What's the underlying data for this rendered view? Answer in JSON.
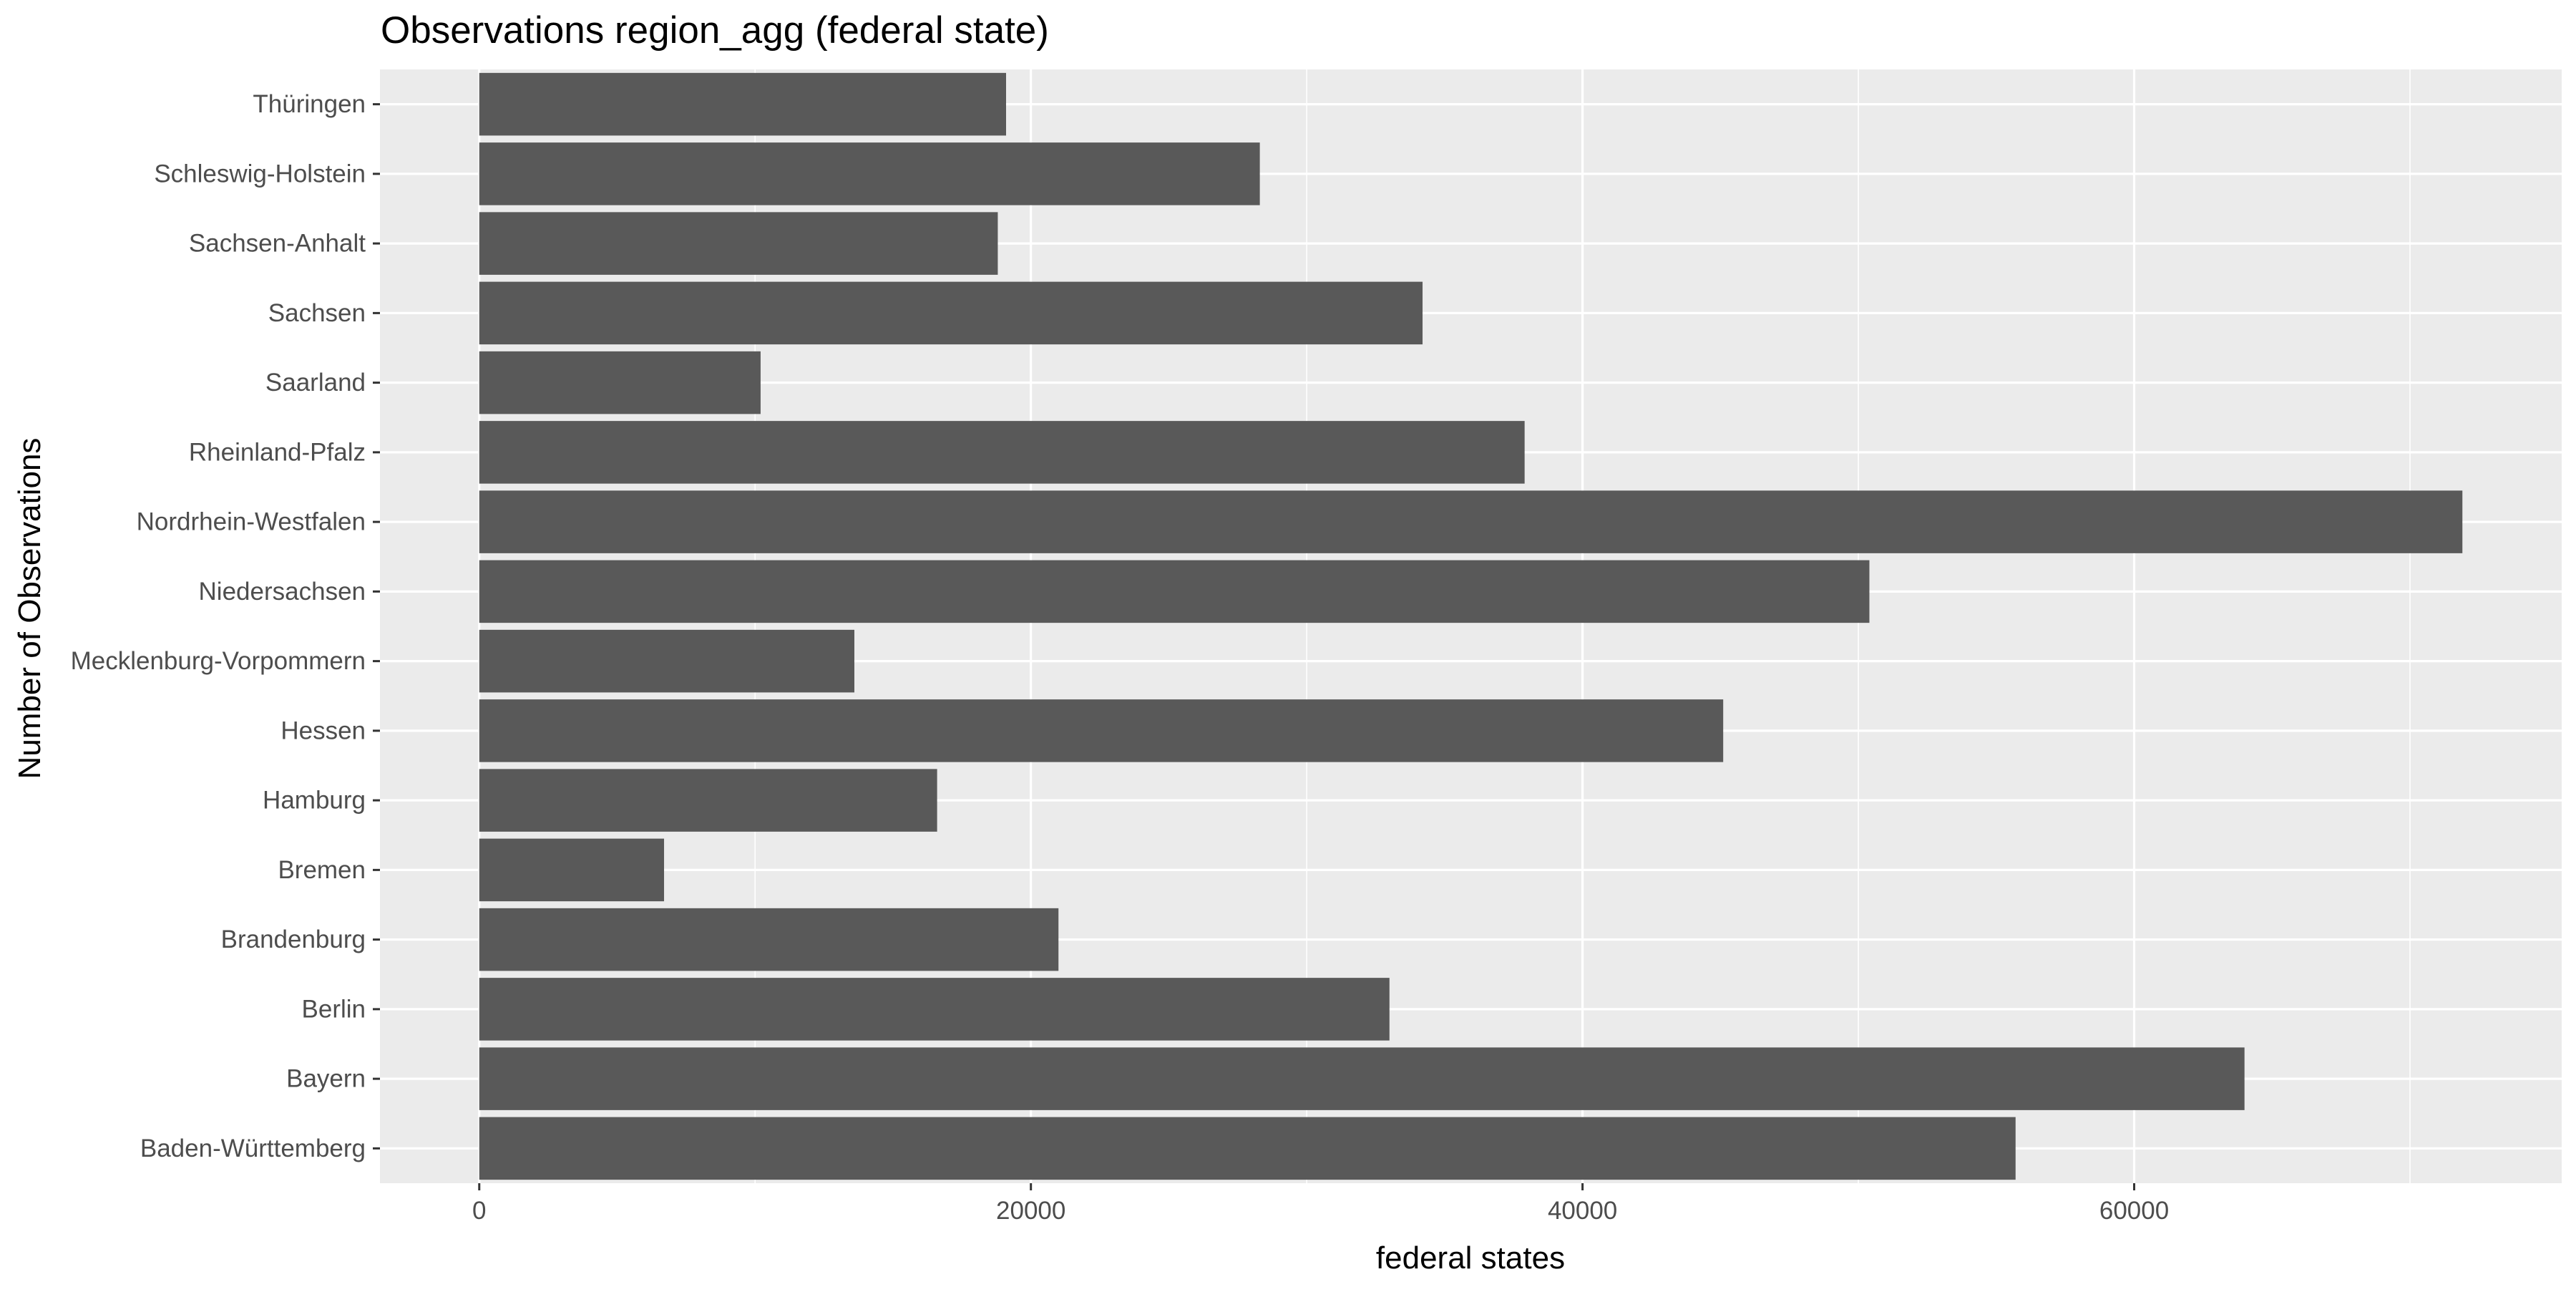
{
  "chart_data": {
    "type": "bar",
    "orientation": "horizontal",
    "title": "Observations region_agg (federal state)",
    "xlabel": "federal states",
    "ylabel": "Number of Observations",
    "categories": [
      "Baden-Württemberg",
      "Bayern",
      "Berlin",
      "Brandenburg",
      "Bremen",
      "Hamburg",
      "Hessen",
      "Mecklenburg-Vorpommern",
      "Niedersachsen",
      "Nordrhein-Westfalen",
      "Rheinland-Pfalz",
      "Saarland",
      "Sachsen",
      "Sachsen-Anhalt",
      "Schleswig-Holstein",
      "Thüringen"
    ],
    "values": [
      55700,
      64000,
      33000,
      21000,
      6700,
      16600,
      45100,
      13600,
      50400,
      71900,
      37900,
      10200,
      34200,
      18800,
      28300,
      19100
    ],
    "xlim": [
      -3600,
      75500
    ],
    "xticks": [
      0,
      20000,
      40000,
      60000
    ],
    "xtick_labels": [
      "0",
      "20000",
      "40000",
      "60000"
    ],
    "grid": true,
    "colors": {
      "bar": "#595959",
      "panel": "#ebebeb",
      "grid": "#ffffff"
    }
  }
}
